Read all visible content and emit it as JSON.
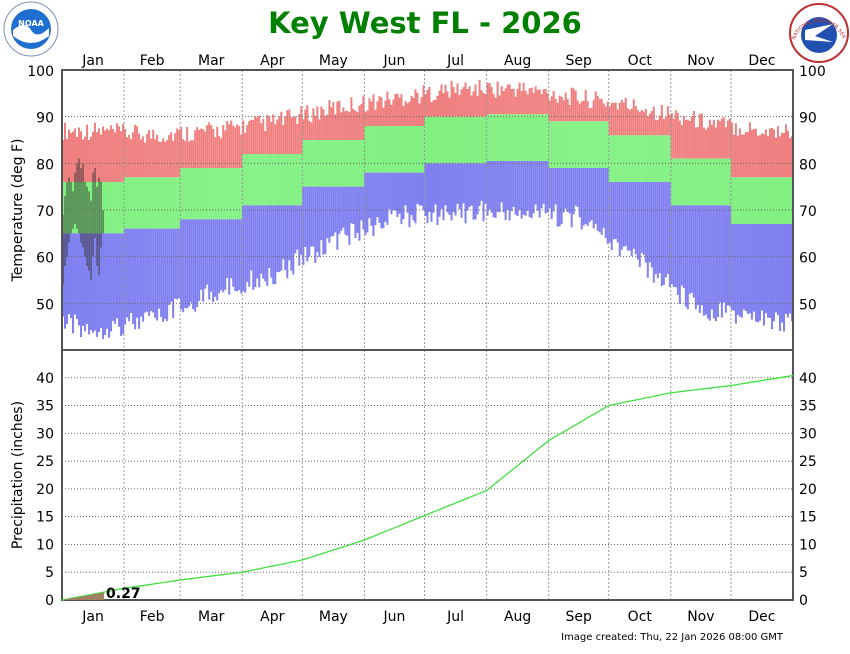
{
  "chart_data": [
    {
      "type": "bar",
      "title": "Key West FL - 2026",
      "ylabel": "Temperature (deg F)",
      "ylim": [
        40,
        100
      ],
      "yticks": [
        50,
        60,
        70,
        80,
        90,
        100
      ],
      "months": [
        "Jan",
        "Feb",
        "Mar",
        "Apr",
        "May",
        "Jun",
        "Jul",
        "Aug",
        "Sep",
        "Oct",
        "Nov",
        "Dec"
      ],
      "grid": true,
      "colors": {
        "record_high": "#f08080",
        "normal": "#80f080",
        "record_low": "#8080f0",
        "observed": "#303030"
      },
      "monthly_record_high": [
        86,
        85,
        86,
        88,
        91,
        93,
        95,
        95,
        93,
        91,
        88,
        86
      ],
      "monthly_record_low": [
        46,
        48,
        54,
        58,
        65,
        70,
        71,
        71,
        70,
        60,
        50,
        48
      ],
      "monthly_normal_high": [
        76,
        77,
        79,
        82,
        85,
        88,
        90,
        90.5,
        89,
        86,
        81,
        77
      ],
      "monthly_normal_low": [
        65,
        66,
        68,
        71,
        75,
        78,
        80,
        80.5,
        79,
        76,
        71,
        67
      ],
      "observed_high": [
        69,
        73,
        76,
        77,
        76,
        74,
        78,
        80,
        81,
        79,
        80,
        76,
        75,
        74,
        72,
        78,
        79,
        75,
        77,
        76,
        70
      ],
      "observed_low": [
        54,
        58,
        60,
        63,
        65,
        66,
        67,
        66,
        65,
        63,
        62,
        60,
        58,
        57,
        55,
        60,
        64,
        58,
        56,
        62,
        65
      ]
    },
    {
      "type": "line",
      "ylabel": "Precipitation (inches)",
      "ylim": [
        0,
        45
      ],
      "yticks": [
        0,
        5,
        10,
        15,
        20,
        25,
        30,
        35,
        40
      ],
      "colors": {
        "normal": "#40e040",
        "observed": "#a08060"
      },
      "normal_cumulative_month_start": [
        0,
        2.1,
        3.6,
        5.0,
        7.2,
        10.8,
        15.2,
        19.7,
        28.7,
        35.0,
        37.3,
        38.6,
        40.4
      ],
      "observed_total": 0.27,
      "observed_label": "0.27",
      "observed_days": 21
    }
  ],
  "footer": "Image created: Thu, 22 Jan 2026 08:00 GMT",
  "logos": {
    "left": "NOAA",
    "right": "NATIONAL WEATHER SERVICE"
  }
}
